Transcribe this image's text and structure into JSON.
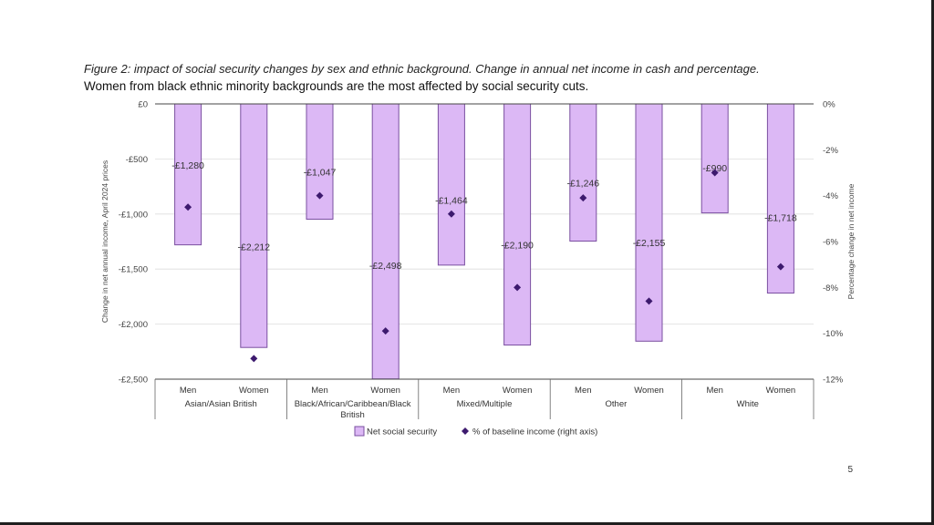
{
  "title": "Figure 2: impact of social security changes by sex and ethnic background. Change in annual net income in cash and percentage.",
  "subtitle": "Women from black ethnic minority backgrounds are the most affected by social security cuts.",
  "page_number": "5",
  "colors": {
    "bar_fill": "#DCB8F5",
    "bar_stroke": "#7A4FA0",
    "marker": "#3D1A6E",
    "axis": "#444444",
    "grid": "#DDDDDD"
  },
  "chart_data": {
    "type": "bar",
    "ylabel": "Change in net annual income, April 2024 prices",
    "y2label": "Percentage change in net income",
    "ylim": [
      -2500,
      0
    ],
    "y2lim": [
      -12,
      0
    ],
    "y_ticks": [
      0,
      -500,
      -1000,
      -1500,
      -2000,
      -2500
    ],
    "y_tick_labels": [
      "£0",
      "-£500",
      "-£1,000",
      "-£1,500",
      "-£2,000",
      "-£2,500"
    ],
    "y2_ticks": [
      0,
      -2,
      -4,
      -6,
      -8,
      -10,
      -12
    ],
    "y2_tick_labels": [
      "0%",
      "-2%",
      "-4%",
      "-6%",
      "-8%",
      "-10%",
      "-12%"
    ],
    "categories": [
      "Men",
      "Women",
      "Men",
      "Women",
      "Men",
      "Women",
      "Men",
      "Women",
      "Men",
      "Women"
    ],
    "groups": [
      "Asian/Asian British",
      "Black/African/Caribbean/Black British",
      "Mixed/Multiple",
      "Other",
      "White"
    ],
    "series": [
      {
        "name": "Net social security",
        "axis": "left",
        "values": [
          -1280,
          -2212,
          -1047,
          -2498,
          -1464,
          -2190,
          -1246,
          -2155,
          -990,
          -1718
        ],
        "labels": [
          "-£1,280",
          "-£2,212",
          "-£1,047",
          "-£2,498",
          "-£1,464",
          "-£2,190",
          "-£1,246",
          "-£2,155",
          "-£990",
          "-£1,718"
        ]
      },
      {
        "name": "% of baseline income (right axis)",
        "axis": "right",
        "values": [
          -4.5,
          -11.1,
          -4.0,
          -9.9,
          -4.8,
          -8.0,
          -4.1,
          -8.6,
          -3.0,
          -7.1
        ]
      }
    ],
    "legend_position": "bottom"
  }
}
